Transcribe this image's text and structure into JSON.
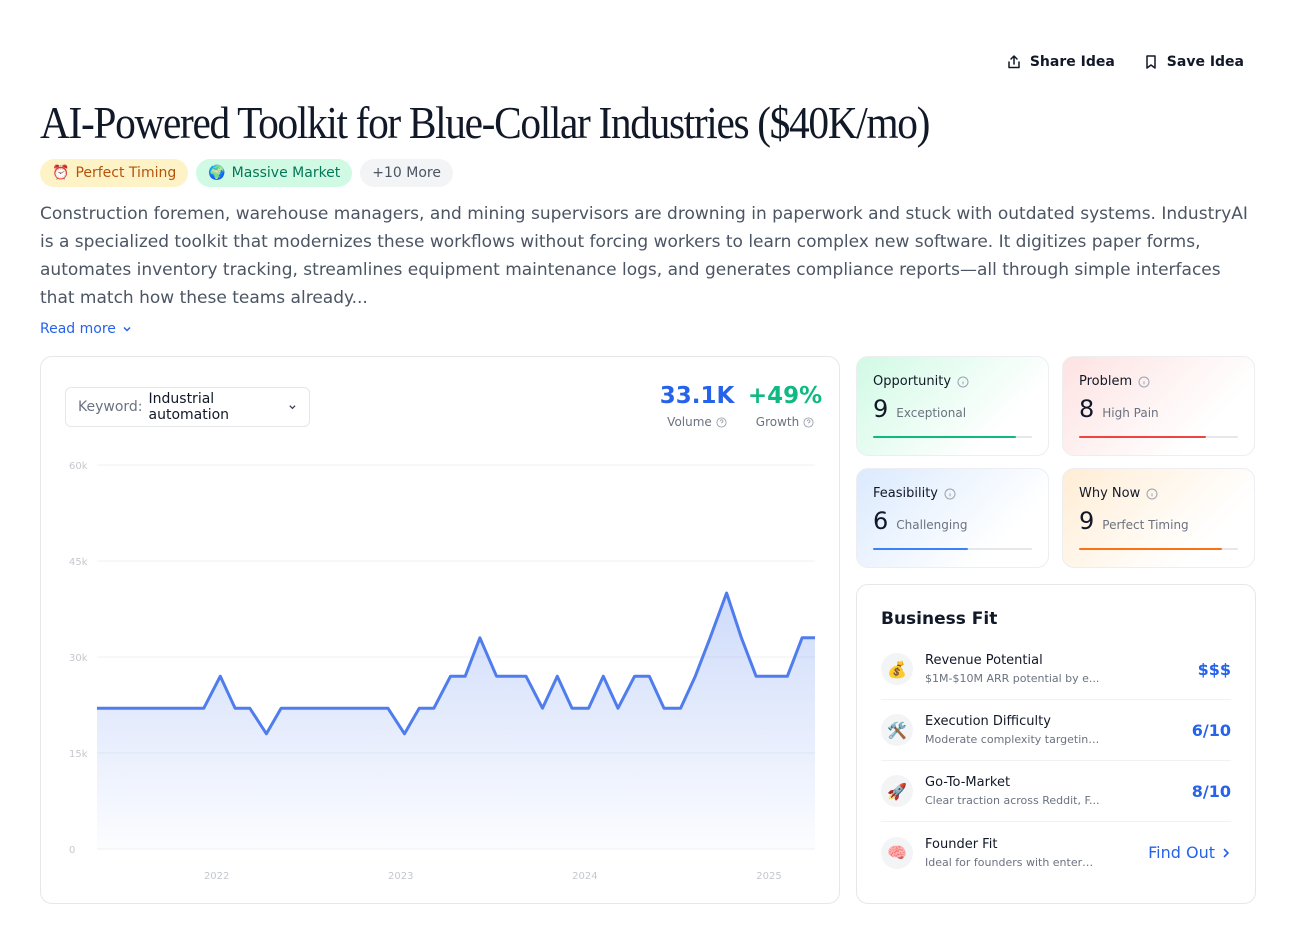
{
  "actions": {
    "share_label": "Share Idea",
    "save_label": "Save Idea"
  },
  "title": "AI-Powered Toolkit for Blue-Collar Industries ($40K/mo)",
  "tags": [
    {
      "icon": "⏰",
      "label": "Perfect Timing"
    },
    {
      "icon": "🌍",
      "label": "Massive Market"
    },
    {
      "label": "+10 More"
    }
  ],
  "description": "Construction foremen, warehouse managers, and mining supervisors are drowning in paperwork and stuck with outdated systems. IndustryAI is a specialized toolkit that modernizes these workflows without forcing workers to learn complex new software. It digitizes paper forms, automates inventory tracking, streamlines equipment maintenance logs, and generates compliance reports—all through simple interfaces that match how these teams already...",
  "read_more": "Read more",
  "keyword": {
    "label": "Keyword:",
    "value": "Industrial automation"
  },
  "stats": {
    "volume": {
      "value": "33.1K",
      "label": "Volume",
      "color": "#2563eb"
    },
    "growth": {
      "value": "+49%",
      "label": "Growth",
      "color": "#10b981"
    }
  },
  "chart_data": {
    "type": "area",
    "y_ticks": [
      "60k",
      "45k",
      "30k",
      "15k",
      "0"
    ],
    "ylim": [
      0,
      60000
    ],
    "x_ticks": [
      "2022",
      "2023",
      "2024",
      "2025"
    ],
    "x_tick_positions": [
      2022,
      2023,
      2024,
      2025
    ],
    "xlim": [
      2021.35,
      2025.25
    ],
    "grid": true,
    "color": "#4f7ded",
    "series": [
      {
        "x": [
          2021.35,
          2021.43,
          2021.52,
          2021.6,
          2021.68,
          2021.77,
          2021.85,
          2021.93,
          2022.02,
          2022.1,
          2022.18,
          2022.27,
          2022.35,
          2022.43,
          2022.52,
          2022.6,
          2022.68,
          2022.77,
          2022.85,
          2022.93,
          2023.02,
          2023.1,
          2023.18,
          2023.27,
          2023.35,
          2023.43,
          2023.52,
          2023.6,
          2023.68,
          2023.77,
          2023.85,
          2023.93,
          2024.02,
          2024.1,
          2024.18,
          2024.27,
          2024.35,
          2024.43,
          2024.52,
          2024.6,
          2024.68,
          2024.77,
          2024.85,
          2024.93,
          2025.02,
          2025.1,
          2025.18,
          2025.25
        ],
        "values": [
          22000,
          22000,
          22000,
          22000,
          22000,
          22000,
          22000,
          22000,
          27000,
          22000,
          22000,
          18000,
          22000,
          22000,
          22000,
          22000,
          22000,
          22000,
          22000,
          22000,
          18000,
          22000,
          22000,
          27000,
          27000,
          33000,
          27000,
          27000,
          27000,
          22000,
          27000,
          22000,
          22000,
          27000,
          22000,
          27000,
          27000,
          22000,
          22000,
          27000,
          33000,
          40000,
          33000,
          27000,
          27000,
          27000,
          33000,
          33000
        ]
      }
    ]
  },
  "metrics": [
    {
      "name": "Opportunity",
      "score": "9",
      "label": "Exceptional",
      "fill": 0.9,
      "color": "#10b981",
      "bg": "linear-gradient(135deg,#d1fae5 0%,#ffffff 75%)"
    },
    {
      "name": "Problem",
      "score": "8",
      "label": "High Pain",
      "fill": 0.8,
      "color": "#ef4444",
      "bg": "linear-gradient(135deg,#fee2e2 0%,#ffffff 75%)"
    },
    {
      "name": "Feasibility",
      "score": "6",
      "label": "Challenging",
      "fill": 0.6,
      "color": "#3b82f6",
      "bg": "linear-gradient(135deg,#dbeafe 0%,#ffffff 75%)"
    },
    {
      "name": "Why Now",
      "score": "9",
      "label": "Perfect Timing",
      "fill": 0.9,
      "color": "#f97316",
      "bg": "linear-gradient(135deg,#ffedd5 0%,#ffffff 75%)"
    }
  ],
  "business_fit": {
    "title": "Business Fit",
    "rows": [
      {
        "icon": "💰",
        "name": "Revenue Potential",
        "sub": "$1M-$10M ARR potential by e...",
        "value": "$$$"
      },
      {
        "icon": "🛠️",
        "name": "Execution Difficulty",
        "sub": "Moderate complexity targeting...",
        "value": "6/10"
      },
      {
        "icon": "🚀",
        "name": "Go-To-Market",
        "sub": "Clear traction across Reddit, F...",
        "value": "8/10"
      },
      {
        "icon": "🧠",
        "name": "Founder Fit",
        "sub": "Ideal for founders with enterpr...",
        "value": "Find Out"
      }
    ]
  }
}
